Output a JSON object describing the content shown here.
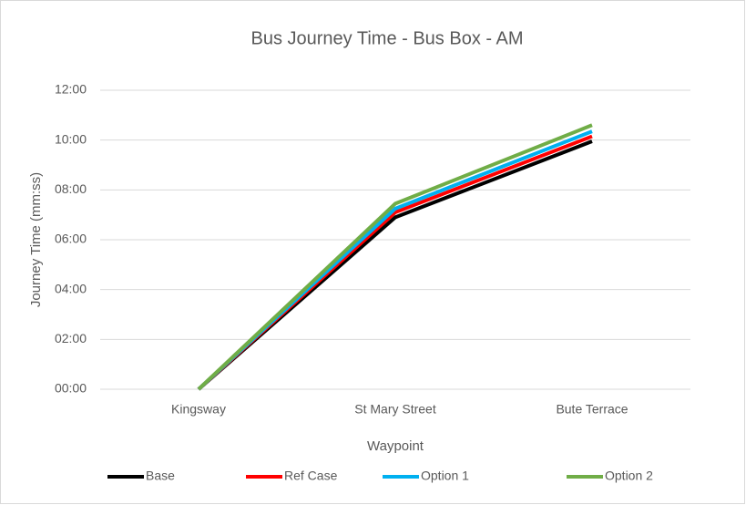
{
  "chart_data": {
    "type": "line",
    "title": "Bus Journey Time - Bus Box - AM",
    "x_label": "Waypoint",
    "y_label": "Journey Time (mm:ss)",
    "categories": [
      "Kingsway",
      "St Mary Street",
      "Bute Terrace"
    ],
    "series": [
      {
        "name": "Base",
        "color": "#000000",
        "values": [
          0,
          6.9,
          9.95
        ]
      },
      {
        "name": "Ref Case",
        "color": "#ff0000",
        "values": [
          0,
          7.1,
          10.15
        ]
      },
      {
        "name": "Option 1",
        "color": "#00b0f0",
        "values": [
          0,
          7.25,
          10.35
        ]
      },
      {
        "name": "Option 2",
        "color": "#70ad47",
        "values": [
          0,
          7.45,
          10.6
        ]
      }
    ],
    "ylim": [
      0,
      12
    ],
    "yticks": [
      {
        "value": 0,
        "label": "00:00"
      },
      {
        "value": 2,
        "label": "02:00"
      },
      {
        "value": 4,
        "label": "04:00"
      },
      {
        "value": 6,
        "label": "06:00"
      },
      {
        "value": 8,
        "label": "08:00"
      },
      {
        "value": 10,
        "label": "10:00"
      },
      {
        "value": 12,
        "label": "12:00"
      }
    ],
    "grid": true,
    "legend": "bottom"
  }
}
